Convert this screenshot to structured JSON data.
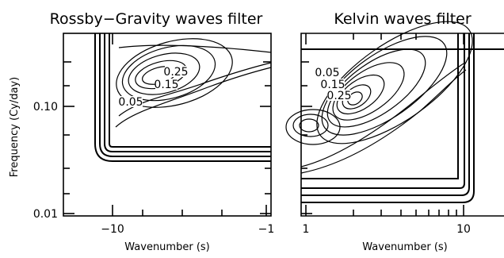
{
  "chart_data": [
    {
      "type": "contour",
      "title": "Rossby−Gravity waves filter",
      "xlabel": "Wavenumber (s)",
      "ylabel": "Frequency (Cy/day)",
      "x_scale": "reversed-log",
      "y_scale": "log",
      "xlim": [
        -20,
        -1
      ],
      "ylim": [
        0.01,
        0.4
      ],
      "xticks": [
        {
          "value": -10,
          "label": "−10"
        },
        {
          "value": -1,
          "label": "−1"
        }
      ],
      "yticks": [
        {
          "value": 0.1,
          "label": "0.10"
        },
        {
          "value": 0.01,
          "label": "0.01"
        }
      ],
      "contour_labels": [
        {
          "text": "0.25",
          "x": -6.5,
          "y": 0.3
        },
        {
          "text": "0.15",
          "x": -6.0,
          "y": 0.19
        },
        {
          "text": "0.05",
          "x": -7.5,
          "y": 0.12
        }
      ],
      "spectral_peak": {
        "x": -7.0,
        "y": 0.22
      },
      "filter_region": {
        "x": [
          -11,
          -1
        ],
        "y": [
          0.05,
          0.4
        ]
      }
    },
    {
      "type": "contour",
      "title": "Kelvin waves filter",
      "xlabel": "Wavenumber (s)",
      "ylabel": "",
      "x_scale": "log",
      "y_scale": "log",
      "xlim": [
        1,
        20
      ],
      "ylim": [
        0.01,
        0.4
      ],
      "xticks": [
        {
          "value": 1,
          "label": "1"
        },
        {
          "value": 10,
          "label": "10"
        }
      ],
      "yticks": [],
      "contour_labels": [
        {
          "text": "0.05",
          "x": 1.6,
          "y": 0.21
        },
        {
          "text": "0.15",
          "x": 1.8,
          "y": 0.17
        },
        {
          "text": "0.25",
          "x": 2.0,
          "y": 0.145
        }
      ],
      "spectral_peak": {
        "x": 2.0,
        "y": 0.125
      },
      "filter_region": {
        "x": [
          1,
          10.5
        ],
        "y": [
          0.02,
          0.3
        ]
      }
    }
  ]
}
